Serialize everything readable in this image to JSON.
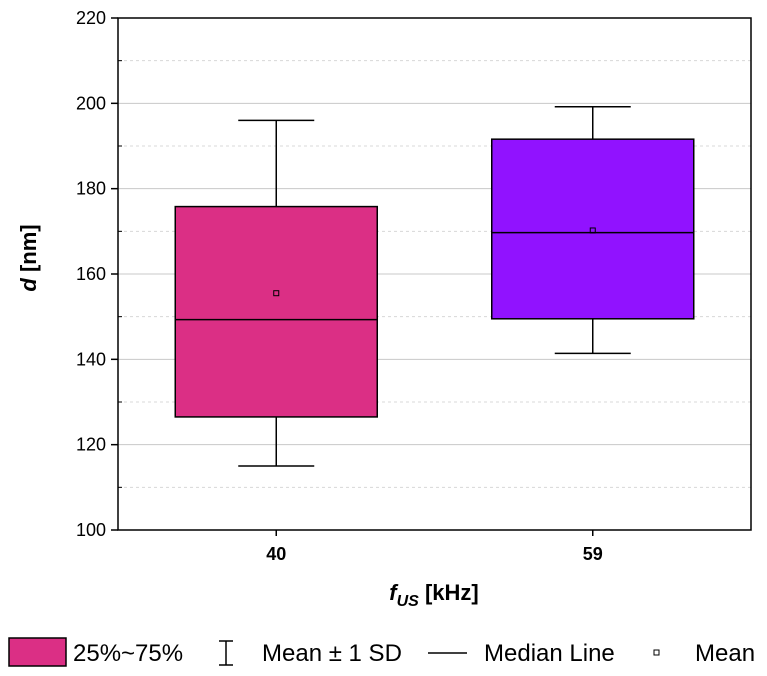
{
  "chart_data": {
    "type": "box",
    "categories": [
      "40",
      "59"
    ],
    "boxes": [
      {
        "category": "40",
        "whisker_low": 115,
        "q1": 126.5,
        "median": 149.3,
        "q3": 175.8,
        "whisker_high": 196,
        "mean": 155.5,
        "color": "#DB2F85"
      },
      {
        "category": "59",
        "whisker_low": 141.4,
        "q1": 149.5,
        "median": 169.7,
        "q3": 191.6,
        "whisker_high": 199.2,
        "mean": 170.2,
        "color": "#9112FF"
      }
    ],
    "xlabel_main": "f",
    "xlabel_sub": "US",
    "xlabel_unit": " [kHz]",
    "ylabel_main": "d",
    "ylabel_unit": " [nm]",
    "ylim": [
      100,
      220
    ],
    "yticks": [
      "100",
      "120",
      "140",
      "160",
      "180",
      "200",
      "220"
    ],
    "grid": true,
    "legend": {
      "position": "bottom",
      "items": {
        "box": "25%~75%",
        "whisker": "Mean ± 1 SD",
        "median": "Median Line",
        "mean": "Mean"
      }
    }
  }
}
